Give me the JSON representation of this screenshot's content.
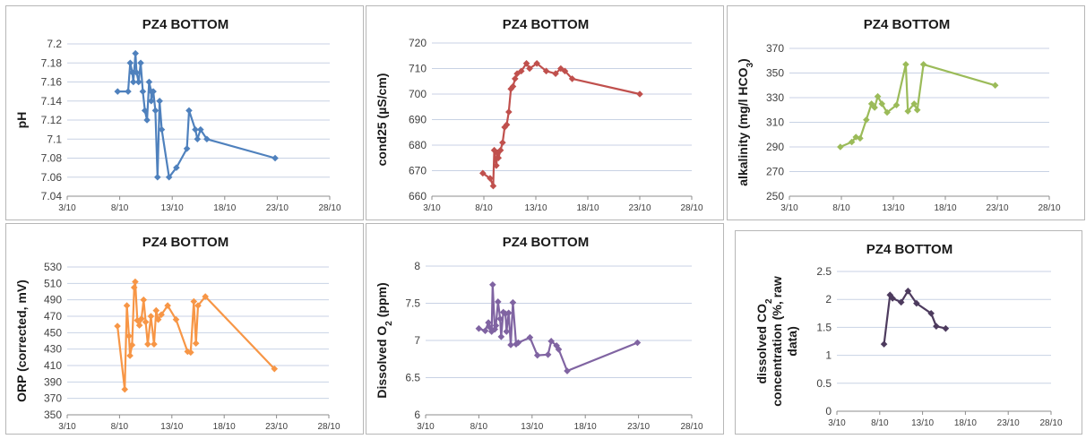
{
  "chart_data": [
    {
      "type": "line",
      "title": "PZ4 BOTTOM",
      "ylabel": "pH",
      "ylabel_sub": "",
      "ylabel_tail": "",
      "color": "#4F81BD",
      "xlim": [
        3,
        28
      ],
      "ylim": [
        7.04,
        7.2
      ],
      "x_ticks": [
        3,
        8,
        13,
        18,
        23,
        28
      ],
      "x_tick_labels": [
        "3/10",
        "8/10",
        "13/10",
        "18/10",
        "23/10",
        "28/10"
      ],
      "y_ticks": [
        7.04,
        7.06,
        7.08,
        7.1,
        7.12,
        7.14,
        7.16,
        7.18,
        7.2
      ],
      "y_tick_labels": [
        "7.04",
        "7.06",
        "7.08",
        "7.1",
        "7.12",
        "7.14",
        "7.16",
        "7.18",
        "7.2"
      ],
      "grid": true,
      "x": [
        7.8,
        8.8,
        9.0,
        9.2,
        9.3,
        9.5,
        9.6,
        9.8,
        10.0,
        10.2,
        10.4,
        10.6,
        10.8,
        11.0,
        11.0,
        11.2,
        11.4,
        11.6,
        11.8,
        12.0,
        12.7,
        13.4,
        14.4,
        14.6,
        15.2,
        15.4,
        15.7,
        16.3,
        22.8
      ],
      "y": [
        7.15,
        7.15,
        7.18,
        7.17,
        7.16,
        7.19,
        7.17,
        7.16,
        7.18,
        7.15,
        7.13,
        7.12,
        7.16,
        7.15,
        7.14,
        7.15,
        7.13,
        7.06,
        7.14,
        7.11,
        7.06,
        7.07,
        7.09,
        7.13,
        7.11,
        7.1,
        7.11,
        7.1,
        7.08
      ]
    },
    {
      "type": "line",
      "title": "PZ4 BOTTOM",
      "ylabel": "cond25 (µS/cm)",
      "ylabel_sub": "",
      "ylabel_tail": "",
      "color": "#C0504D",
      "xlim": [
        3,
        28
      ],
      "ylim": [
        660,
        720
      ],
      "x_ticks": [
        3,
        8,
        13,
        18,
        23,
        28
      ],
      "x_tick_labels": [
        "3/10",
        "8/10",
        "13/10",
        "18/10",
        "23/10",
        "28/10"
      ],
      "y_ticks": [
        660,
        670,
        680,
        690,
        700,
        710,
        720
      ],
      "y_tick_labels": [
        "660",
        "670",
        "680",
        "690",
        "700",
        "710",
        "720"
      ],
      "grid": true,
      "x": [
        7.9,
        8.6,
        8.9,
        9.0,
        9.2,
        9.3,
        9.4,
        9.6,
        9.8,
        10.0,
        10.2,
        10.4,
        10.6,
        10.8,
        11.0,
        11.2,
        11.6,
        12.1,
        12.4,
        13.1,
        14.0,
        14.9,
        15.4,
        15.8,
        16.5,
        23.0
      ],
      "y": [
        669,
        667,
        664,
        678,
        672,
        677,
        675,
        678,
        681,
        687,
        688,
        693,
        702,
        703,
        706,
        708,
        709,
        712,
        710,
        712,
        709,
        708,
        710,
        709,
        706,
        700
      ]
    },
    {
      "type": "line",
      "title": "PZ4 BOTTOM",
      "ylabel": "alkalinity (mg/l HCO",
      "ylabel_sub": "3",
      "ylabel_tail": ")",
      "color": "#9BBB59",
      "xlim": [
        3,
        28
      ],
      "ylim": [
        250,
        370
      ],
      "x_ticks": [
        3,
        8,
        13,
        18,
        23,
        28
      ],
      "x_tick_labels": [
        "3/10",
        "8/10",
        "13/10",
        "18/10",
        "23/10",
        "28/10"
      ],
      "y_ticks": [
        250,
        270,
        290,
        310,
        330,
        350,
        370
      ],
      "y_tick_labels": [
        "250",
        "270",
        "290",
        "310",
        "330",
        "350",
        "370"
      ],
      "grid": true,
      "x": [
        7.9,
        9.0,
        9.4,
        9.8,
        10.4,
        10.9,
        11.2,
        11.5,
        11.9,
        12.4,
        13.3,
        14.2,
        14.4,
        15.0,
        15.3,
        15.9,
        22.8
      ],
      "y": [
        290,
        294,
        298,
        297,
        312,
        325,
        322,
        331,
        325,
        318,
        324,
        357,
        319,
        325,
        320,
        357,
        340
      ]
    },
    {
      "type": "line",
      "title": "PZ4 BOTTOM",
      "ylabel": "ORP (corrected, mV)",
      "ylabel_sub": "",
      "ylabel_tail": "",
      "color": "#F79646",
      "xlim": [
        3,
        28
      ],
      "ylim": [
        350,
        530
      ],
      "x_ticks": [
        3,
        8,
        13,
        18,
        23,
        28
      ],
      "x_tick_labels": [
        "3/10",
        "8/10",
        "13/10",
        "18/10",
        "23/10",
        "28/10"
      ],
      "y_ticks": [
        350,
        370,
        390,
        410,
        430,
        450,
        470,
        490,
        510,
        530
      ],
      "y_tick_labels": [
        "350",
        "370",
        "390",
        "410",
        "430",
        "450",
        "470",
        "490",
        "510",
        "530"
      ],
      "grid": true,
      "x": [
        7.8,
        8.5,
        8.7,
        8.9,
        9.0,
        9.2,
        9.4,
        9.5,
        9.7,
        9.9,
        10.1,
        10.3,
        10.5,
        10.7,
        11.0,
        11.3,
        11.5,
        11.7,
        12.0,
        12.6,
        13.4,
        14.5,
        14.8,
        15.1,
        15.3,
        15.5,
        16.2,
        22.8
      ],
      "y": [
        458,
        381,
        483,
        446,
        422,
        435,
        505,
        512,
        465,
        459,
        467,
        490,
        463,
        436,
        470,
        436,
        477,
        466,
        472,
        483,
        466,
        427,
        426,
        488,
        437,
        483,
        494,
        406
      ]
    },
    {
      "type": "line",
      "title": "PZ4 BOTTOM",
      "ylabel": "Dissolved O",
      "ylabel_sub": "2",
      "ylabel_tail": " (ppm)",
      "color": "#8064A2",
      "xlim": [
        3,
        28
      ],
      "ylim": [
        6,
        8
      ],
      "x_ticks": [
        3,
        8,
        13,
        18,
        23,
        28
      ],
      "x_tick_labels": [
        "3/10",
        "8/10",
        "13/10",
        "18/10",
        "23/10",
        "28/10"
      ],
      "y_ticks": [
        6,
        6.5,
        7,
        7.5,
        8
      ],
      "y_tick_labels": [
        "6",
        "6.5",
        "7",
        "7.5",
        "8"
      ],
      "grid": true,
      "x": [
        8.0,
        8.6,
        8.9,
        9.0,
        9.2,
        9.3,
        9.5,
        9.6,
        9.8,
        10.0,
        10.1,
        10.3,
        10.5,
        10.6,
        10.8,
        11.0,
        11.2,
        11.5,
        11.7,
        12.8,
        13.5,
        14.5,
        14.8,
        15.3,
        15.5,
        16.3,
        22.9
      ],
      "y": [
        7.16,
        7.13,
        7.24,
        7.18,
        7.12,
        7.75,
        7.15,
        7.2,
        7.52,
        7.29,
        7.05,
        7.38,
        7.36,
        7.12,
        7.37,
        6.94,
        7.51,
        6.95,
        6.97,
        7.04,
        6.8,
        6.81,
        6.99,
        6.93,
        6.88,
        6.59,
        6.97
      ]
    },
    {
      "type": "line",
      "title": "PZ4 BOTTOM",
      "ylabel": "dissolved CO",
      "ylabel_sub": "2",
      "ylabel_tail": "",
      "ylabel_line2": "concentration (%, raw",
      "ylabel_line3": "data)",
      "color": "#4D3B5E",
      "xlim": [
        3,
        28
      ],
      "ylim": [
        0,
        2.5
      ],
      "x_ticks": [
        3,
        8,
        13,
        18,
        23,
        28
      ],
      "x_tick_labels": [
        "3/10",
        "8/10",
        "13/10",
        "18/10",
        "23/10",
        "28/10"
      ],
      "y_ticks": [
        0,
        0.5,
        1,
        1.5,
        2,
        2.5
      ],
      "y_tick_labels": [
        "0",
        "0.5",
        "1",
        "1.5",
        "2",
        "2.5"
      ],
      "grid": true,
      "x": [
        8.5,
        9.2,
        9.5,
        10.5,
        11.3,
        12.3,
        14.0,
        14.6,
        15.7
      ],
      "y": [
        1.2,
        2.08,
        2.02,
        1.95,
        2.15,
        1.93,
        1.75,
        1.52,
        1.48
      ]
    }
  ]
}
